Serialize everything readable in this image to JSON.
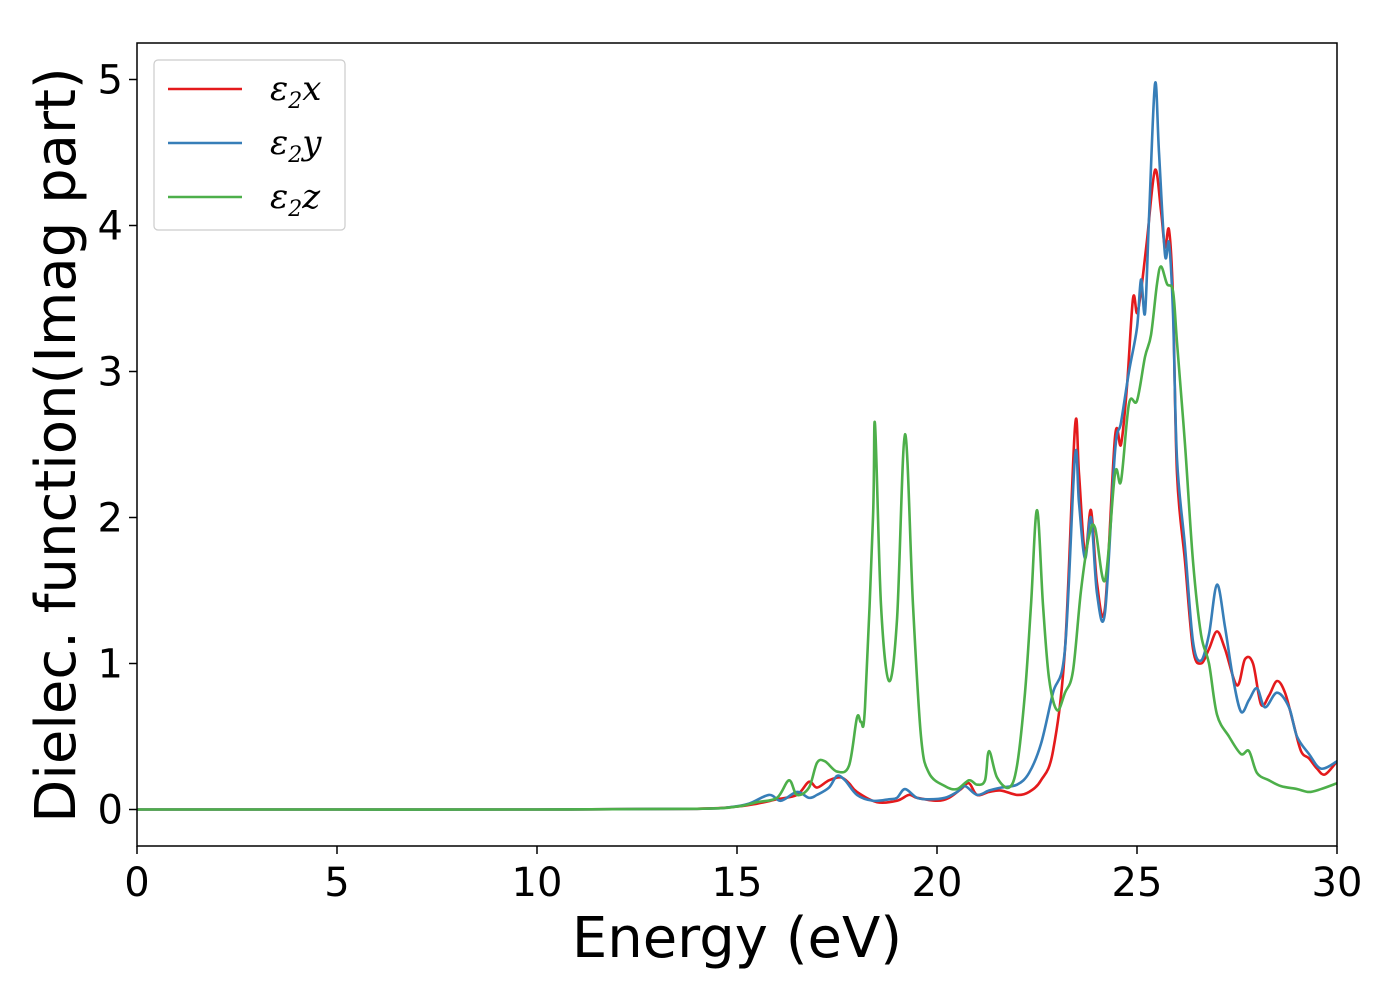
{
  "chart_data": {
    "type": "line",
    "title": "",
    "xlabel": "Energy (eV)",
    "ylabel": "Dielec. function(Imag part)",
    "xlim": [
      0,
      30
    ],
    "ylim": [
      -0.25,
      5.25
    ],
    "xticks": [
      0,
      5,
      10,
      15,
      20,
      25,
      30
    ],
    "yticks": [
      0,
      1,
      2,
      3,
      4,
      5
    ],
    "xtick_labels": [
      "0",
      "5",
      "10",
      "15",
      "20",
      "25",
      "30"
    ],
    "ytick_labels": [
      "0",
      "1",
      "2",
      "3",
      "4",
      "5"
    ],
    "grid": false,
    "legend_position": "top-left",
    "series": [
      {
        "name": "ε2x",
        "base": "ε",
        "sub": "2",
        "suffix": "x",
        "color": "#e41a1c",
        "x": [
          0,
          5,
          10,
          14,
          15,
          15.5,
          16,
          16.5,
          16.8,
          17,
          17.3,
          17.6,
          17.8,
          18,
          18.5,
          19,
          19.3,
          19.5,
          20,
          20.3,
          20.6,
          20.8,
          21,
          21.3,
          21.6,
          22,
          22.3,
          22.6,
          22.9,
          23.2,
          23.45,
          23.55,
          23.7,
          23.85,
          24,
          24.2,
          24.45,
          24.6,
          24.75,
          24.9,
          25,
          25.1,
          25.25,
          25.45,
          25.6,
          25.7,
          25.8,
          25.9,
          26,
          26.2,
          26.4,
          26.6,
          26.8,
          27,
          27.2,
          27.5,
          27.7,
          27.9,
          28.1,
          28.3,
          28.5,
          28.7,
          28.9,
          29.1,
          29.3,
          29.5,
          29.7,
          30
        ],
        "y": [
          0,
          0,
          0,
          0.005,
          0.02,
          0.04,
          0.07,
          0.1,
          0.19,
          0.15,
          0.2,
          0.22,
          0.18,
          0.12,
          0.05,
          0.06,
          0.1,
          0.08,
          0.06,
          0.08,
          0.14,
          0.18,
          0.1,
          0.12,
          0.13,
          0.1,
          0.12,
          0.2,
          0.4,
          1.1,
          2.62,
          2.3,
          1.75,
          2.05,
          1.55,
          1.38,
          2.55,
          2.5,
          2.9,
          3.5,
          3.4,
          3.55,
          3.9,
          4.38,
          4.1,
          3.85,
          3.97,
          3.5,
          2.3,
          1.7,
          1.1,
          1.0,
          1.1,
          1.22,
          1.1,
          0.85,
          1.03,
          1.0,
          0.72,
          0.78,
          0.88,
          0.8,
          0.6,
          0.4,
          0.35,
          0.28,
          0.24,
          0.33
        ]
      },
      {
        "name": "ε2y",
        "base": "ε",
        "sub": "2",
        "suffix": "y",
        "color": "#377eb8",
        "x": [
          0,
          5,
          10,
          14,
          14.8,
          15.3,
          15.8,
          16.1,
          16.5,
          16.8,
          17,
          17.3,
          17.5,
          17.7,
          18,
          18.4,
          18.8,
          19,
          19.2,
          19.5,
          19.8,
          20.2,
          20.5,
          20.7,
          21,
          21.3,
          21.6,
          22,
          22.3,
          22.6,
          22.9,
          23.2,
          23.45,
          23.55,
          23.7,
          23.85,
          24,
          24.2,
          24.45,
          24.6,
          24.8,
          25,
          25.1,
          25.2,
          25.3,
          25.45,
          25.55,
          25.7,
          25.8,
          25.9,
          26,
          26.2,
          26.4,
          26.6,
          26.8,
          27,
          27.2,
          27.4,
          27.6,
          27.8,
          28,
          28.2,
          28.5,
          28.8,
          29,
          29.3,
          29.6,
          30
        ],
        "y": [
          0,
          0,
          0,
          0.005,
          0.015,
          0.04,
          0.1,
          0.06,
          0.12,
          0.08,
          0.1,
          0.15,
          0.23,
          0.2,
          0.1,
          0.06,
          0.07,
          0.08,
          0.14,
          0.08,
          0.07,
          0.08,
          0.12,
          0.16,
          0.1,
          0.13,
          0.15,
          0.17,
          0.25,
          0.45,
          0.8,
          1.1,
          2.42,
          2.1,
          1.72,
          2.0,
          1.48,
          1.35,
          2.45,
          2.65,
          3.0,
          3.3,
          3.63,
          3.4,
          4.05,
          4.97,
          4.5,
          3.8,
          3.88,
          3.4,
          2.4,
          1.8,
          1.15,
          1.02,
          1.2,
          1.54,
          1.25,
          0.9,
          0.67,
          0.75,
          0.83,
          0.7,
          0.8,
          0.7,
          0.5,
          0.38,
          0.28,
          0.33
        ]
      },
      {
        "name": "ε2z",
        "base": "ε",
        "sub": "2",
        "suffix": "z",
        "color": "#4daf4a",
        "x": [
          0,
          5,
          10,
          14,
          15,
          15.5,
          16,
          16.3,
          16.5,
          16.8,
          17,
          17.2,
          17.5,
          17.8,
          18,
          18.1,
          18.2,
          18.4,
          18.45,
          18.6,
          18.8,
          19,
          19.2,
          19.4,
          19.6,
          19.8,
          20.2,
          20.5,
          20.8,
          21,
          21.2,
          21.3,
          21.5,
          21.8,
          22,
          22.2,
          22.35,
          22.5,
          22.65,
          22.8,
          23,
          23.2,
          23.4,
          23.6,
          23.8,
          23.95,
          24.2,
          24.45,
          24.6,
          24.8,
          25,
          25.2,
          25.35,
          25.5,
          25.6,
          25.75,
          25.9,
          26,
          26.2,
          26.4,
          26.6,
          26.8,
          27,
          27.3,
          27.6,
          27.8,
          28,
          28.3,
          28.6,
          29,
          29.3,
          29.6,
          30
        ],
        "y": [
          0,
          0,
          0,
          0.005,
          0.02,
          0.05,
          0.08,
          0.2,
          0.1,
          0.15,
          0.32,
          0.33,
          0.26,
          0.3,
          0.63,
          0.6,
          0.7,
          2.0,
          2.64,
          1.4,
          0.88,
          1.3,
          2.57,
          1.4,
          0.5,
          0.25,
          0.16,
          0.14,
          0.2,
          0.17,
          0.2,
          0.4,
          0.22,
          0.15,
          0.3,
          0.8,
          1.4,
          2.05,
          1.4,
          0.9,
          0.68,
          0.8,
          0.95,
          1.5,
          1.87,
          1.93,
          1.57,
          2.3,
          2.25,
          2.78,
          2.8,
          3.1,
          3.25,
          3.6,
          3.72,
          3.6,
          3.55,
          3.2,
          2.5,
          1.7,
          1.2,
          1.0,
          0.65,
          0.5,
          0.38,
          0.4,
          0.25,
          0.2,
          0.16,
          0.14,
          0.12,
          0.14,
          0.18
        ]
      }
    ]
  }
}
